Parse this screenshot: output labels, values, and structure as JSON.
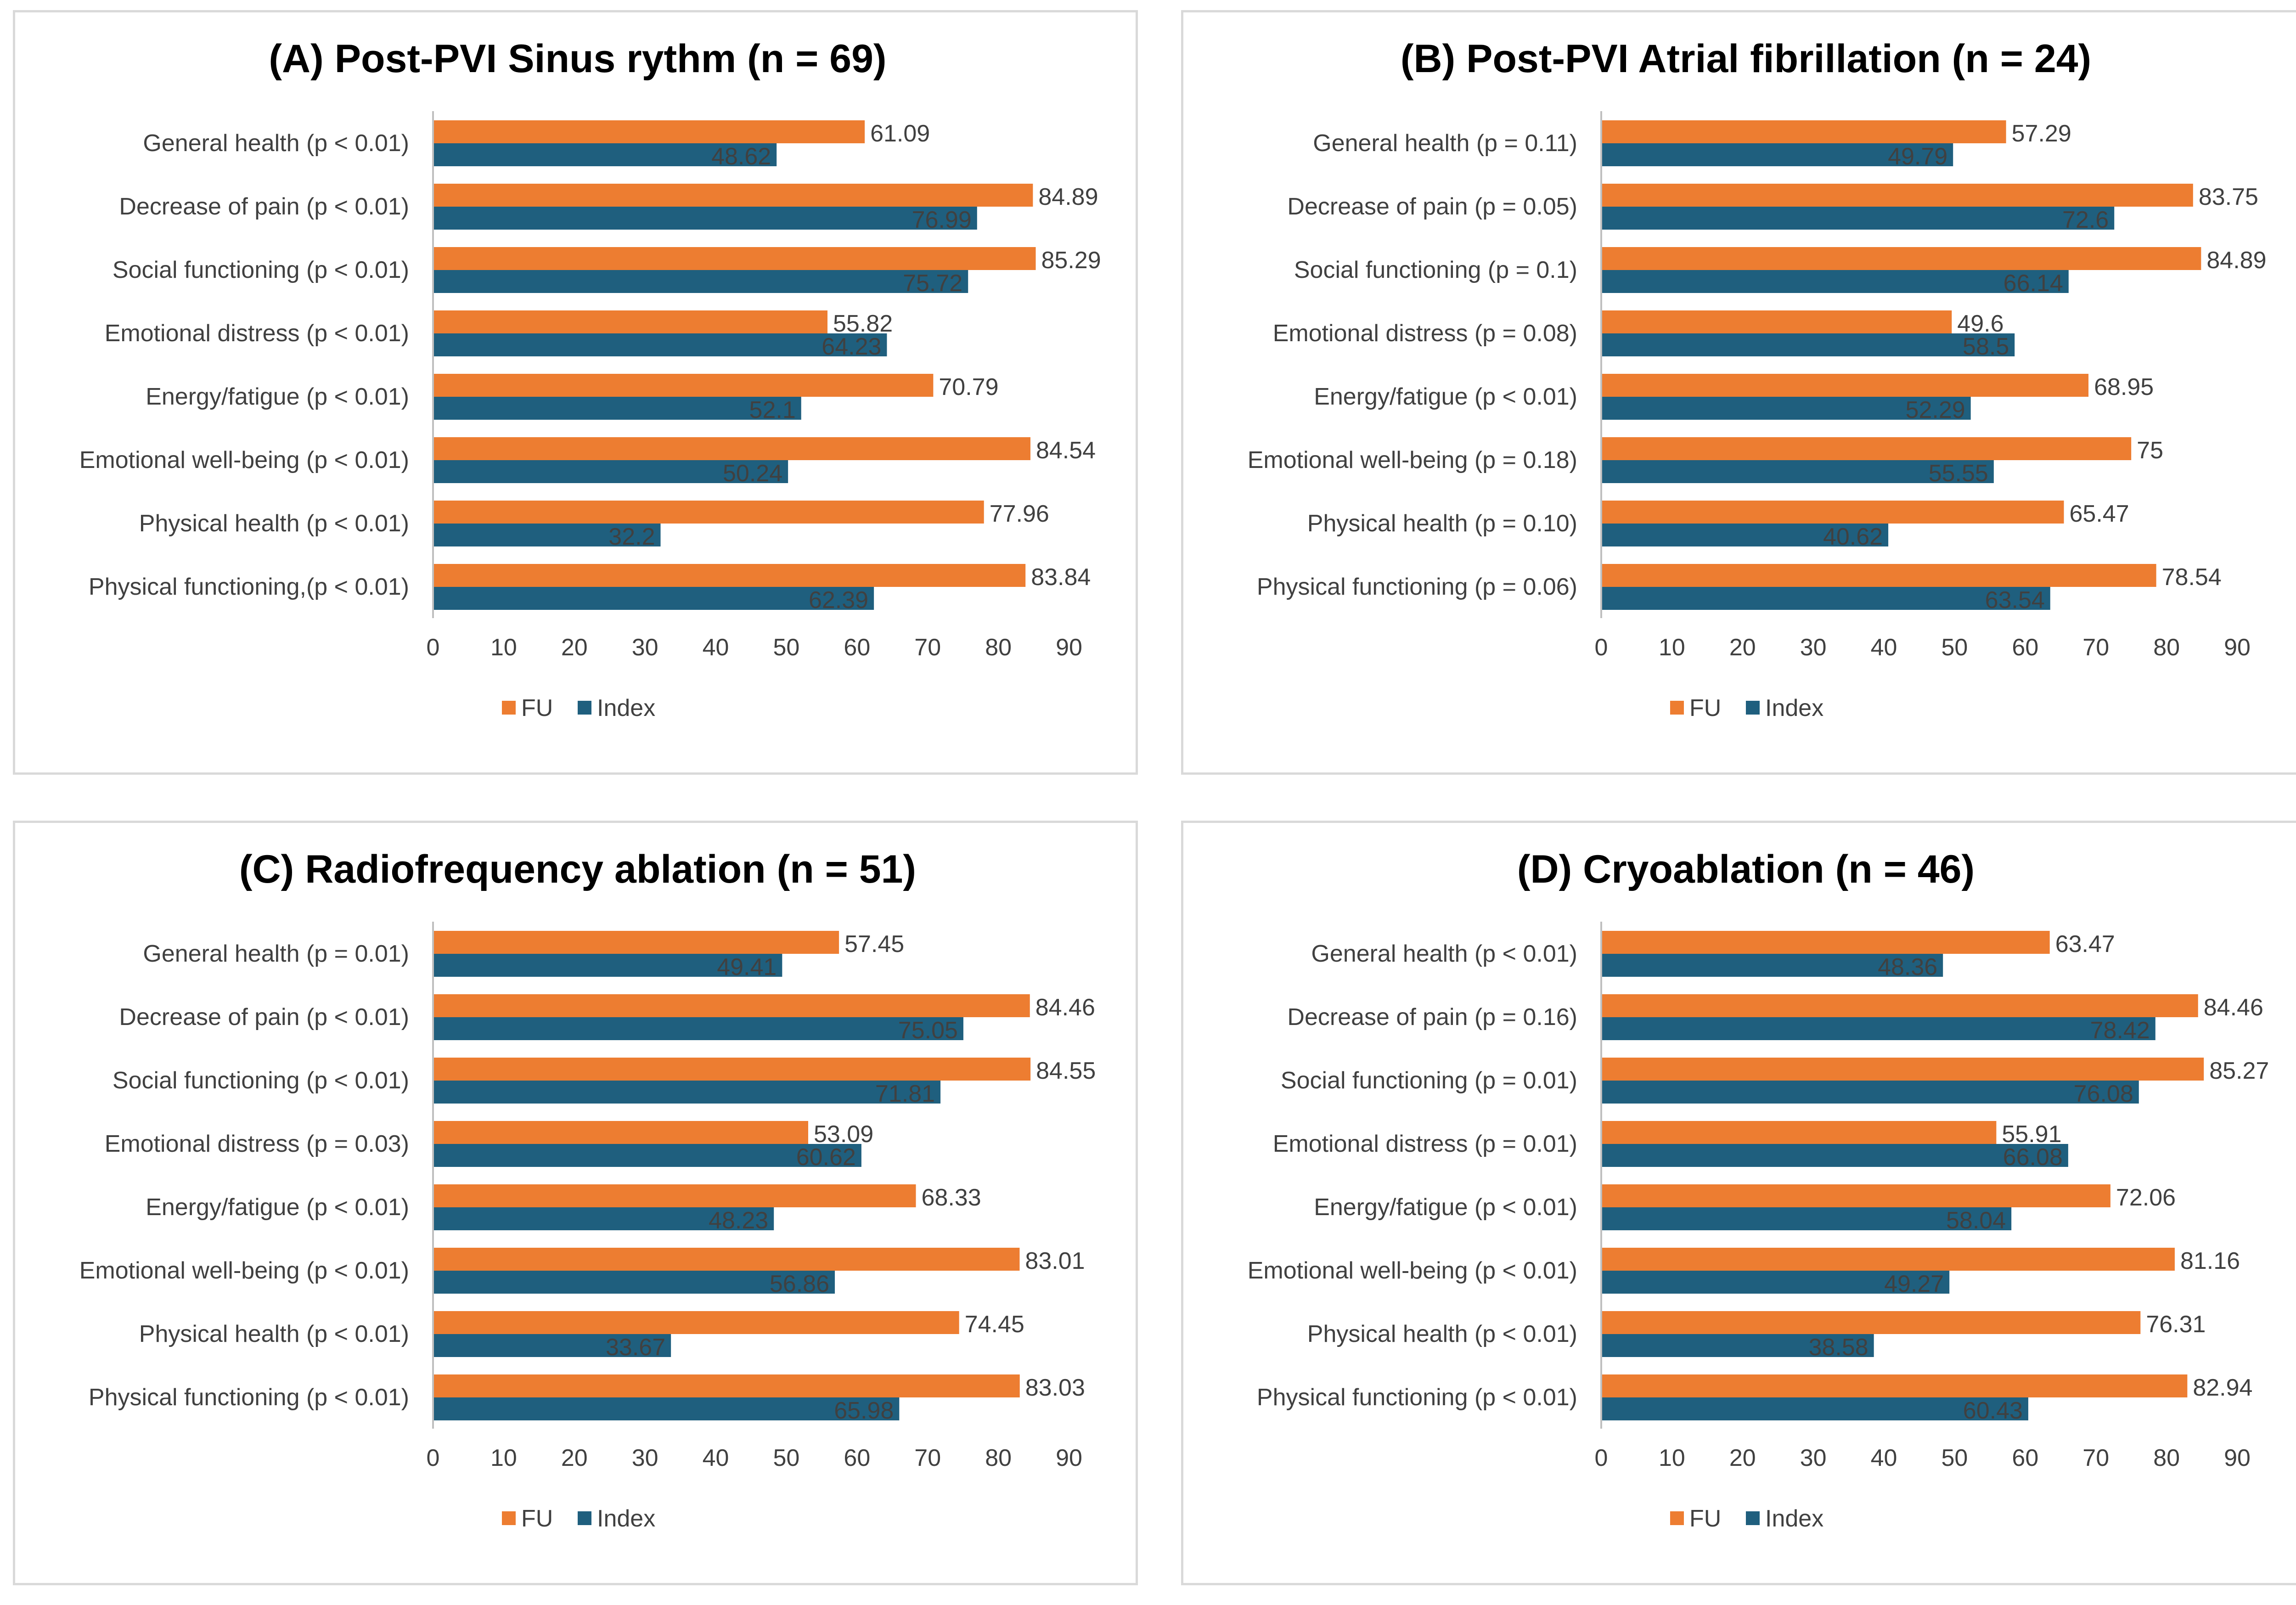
{
  "colors": {
    "fu": "#ED7D31",
    "index": "#1F5F7E"
  },
  "chart_data": [
    {
      "type": "bar",
      "orientation": "horizontal",
      "title": "(A) Post-PVI Sinus rythm (n = 69)",
      "categories": [
        "General health (p < 0.01)",
        "Decrease of pain (p < 0.01)",
        "Social functioning (p < 0.01)",
        "Emotional distress (p < 0.01)",
        "Energy/fatigue (p < 0.01)",
        "Emotional well-being (p < 0.01)",
        "Physical health (p < 0.01)",
        "Physical functioning,(p < 0.01)"
      ],
      "series": [
        {
          "name": "FU",
          "values": [
            61.09,
            84.89,
            85.29,
            55.82,
            70.79,
            84.54,
            77.96,
            83.84
          ],
          "labels": [
            "61.09",
            "84.89",
            "85.29",
            "55.82",
            "70.79",
            "84.54",
            "77.96",
            "83.84"
          ]
        },
        {
          "name": "Index",
          "values": [
            48.62,
            76.99,
            75.72,
            64.23,
            52.1,
            50.24,
            32.2,
            62.39
          ],
          "labels": [
            "48.62",
            "76.99",
            "75.72",
            "64.23",
            "52.1",
            "50.24",
            "32.2",
            "62.39"
          ]
        }
      ],
      "xlim": [
        0,
        90
      ],
      "xticks": [
        "0",
        "10",
        "20",
        "30",
        "40",
        "50",
        "60",
        "70",
        "80",
        "90"
      ],
      "legend": "bottom"
    },
    {
      "type": "bar",
      "orientation": "horizontal",
      "title": "(B) Post-PVI Atrial fibrillation (n = 24)",
      "categories": [
        "General health (p = 0.11)",
        "Decrease of pain (p = 0.05)",
        "Social functioning (p = 0.1)",
        "Emotional distress (p = 0.08)",
        "Energy/fatigue (p < 0.01)",
        "Emotional well-being (p = 0.18)",
        "Physical health (p = 0.10)",
        "Physical functioning (p = 0.06)"
      ],
      "series": [
        {
          "name": "FU",
          "values": [
            57.29,
            83.75,
            84.89,
            49.6,
            68.95,
            75,
            65.47,
            78.54
          ],
          "labels": [
            "57.29",
            "83.75",
            "84.89",
            "49.6",
            "68.95",
            "75",
            "65.47",
            "78.54"
          ]
        },
        {
          "name": "Index",
          "values": [
            49.79,
            72.6,
            66.14,
            58.5,
            52.29,
            55.55,
            40.62,
            63.54
          ],
          "labels": [
            "49.79",
            "72.6",
            "66.14",
            "58.5",
            "52.29",
            "55.55",
            "40.62",
            "63.54"
          ]
        }
      ],
      "xlim": [
        0,
        90
      ],
      "xticks": [
        "0",
        "10",
        "20",
        "30",
        "40",
        "50",
        "60",
        "70",
        "80",
        "90"
      ],
      "legend": "bottom"
    },
    {
      "type": "bar",
      "orientation": "horizontal",
      "title": "(C) Radiofrequency ablation (n = 51)",
      "categories": [
        "General health (p = 0.01)",
        "Decrease of pain (p < 0.01)",
        "Social functioning (p < 0.01)",
        "Emotional distress (p = 0.03)",
        "Energy/fatigue (p < 0.01)",
        "Emotional well-being (p < 0.01)",
        "Physical health (p < 0.01)",
        "Physical functioning (p < 0.01)"
      ],
      "series": [
        {
          "name": "FU",
          "values": [
            57.45,
            84.46,
            84.55,
            53.09,
            68.33,
            83.01,
            74.45,
            83.03
          ],
          "labels": [
            "57.45",
            "84.46",
            "84.55",
            "53.09",
            "68.33",
            "83.01",
            "74.45",
            "83.03"
          ]
        },
        {
          "name": "Index",
          "values": [
            49.41,
            75.05,
            71.81,
            60.62,
            48.23,
            56.86,
            33.67,
            65.98
          ],
          "labels": [
            "49.41",
            "75.05",
            "71.81",
            "60.62",
            "48.23",
            "56.86",
            "33.67",
            "65.98"
          ]
        }
      ],
      "xlim": [
        0,
        90
      ],
      "xticks": [
        "0",
        "10",
        "20",
        "30",
        "40",
        "50",
        "60",
        "70",
        "80",
        "90"
      ],
      "legend": "bottom"
    },
    {
      "type": "bar",
      "orientation": "horizontal",
      "title": "(D) Cryoablation (n = 46)",
      "categories": [
        "General health (p < 0.01)",
        "Decrease of pain (p = 0.16)",
        "Social functioning (p = 0.01)",
        "Emotional distress (p = 0.01)",
        "Energy/fatigue (p < 0.01)",
        "Emotional well-being (p < 0.01)",
        "Physical health (p < 0.01)",
        "Physical functioning (p < 0.01)"
      ],
      "series": [
        {
          "name": "FU",
          "values": [
            63.47,
            84.46,
            85.27,
            55.91,
            72.06,
            81.16,
            76.31,
            82.94
          ],
          "labels": [
            "63.47",
            "84.46",
            "85.27",
            "55.91",
            "72.06",
            "81.16",
            "76.31",
            "82.94"
          ]
        },
        {
          "name": "Index",
          "values": [
            48.36,
            78.42,
            76.08,
            66.08,
            58.04,
            49.27,
            38.58,
            60.43
          ],
          "labels": [
            "48.36",
            "78.42",
            "76.08",
            "66.08",
            "58.04",
            "49.27",
            "38.58",
            "60.43"
          ]
        }
      ],
      "xlim": [
        0,
        90
      ],
      "xticks": [
        "0",
        "10",
        "20",
        "30",
        "40",
        "50",
        "60",
        "70",
        "80",
        "90"
      ],
      "legend": "bottom"
    }
  ]
}
